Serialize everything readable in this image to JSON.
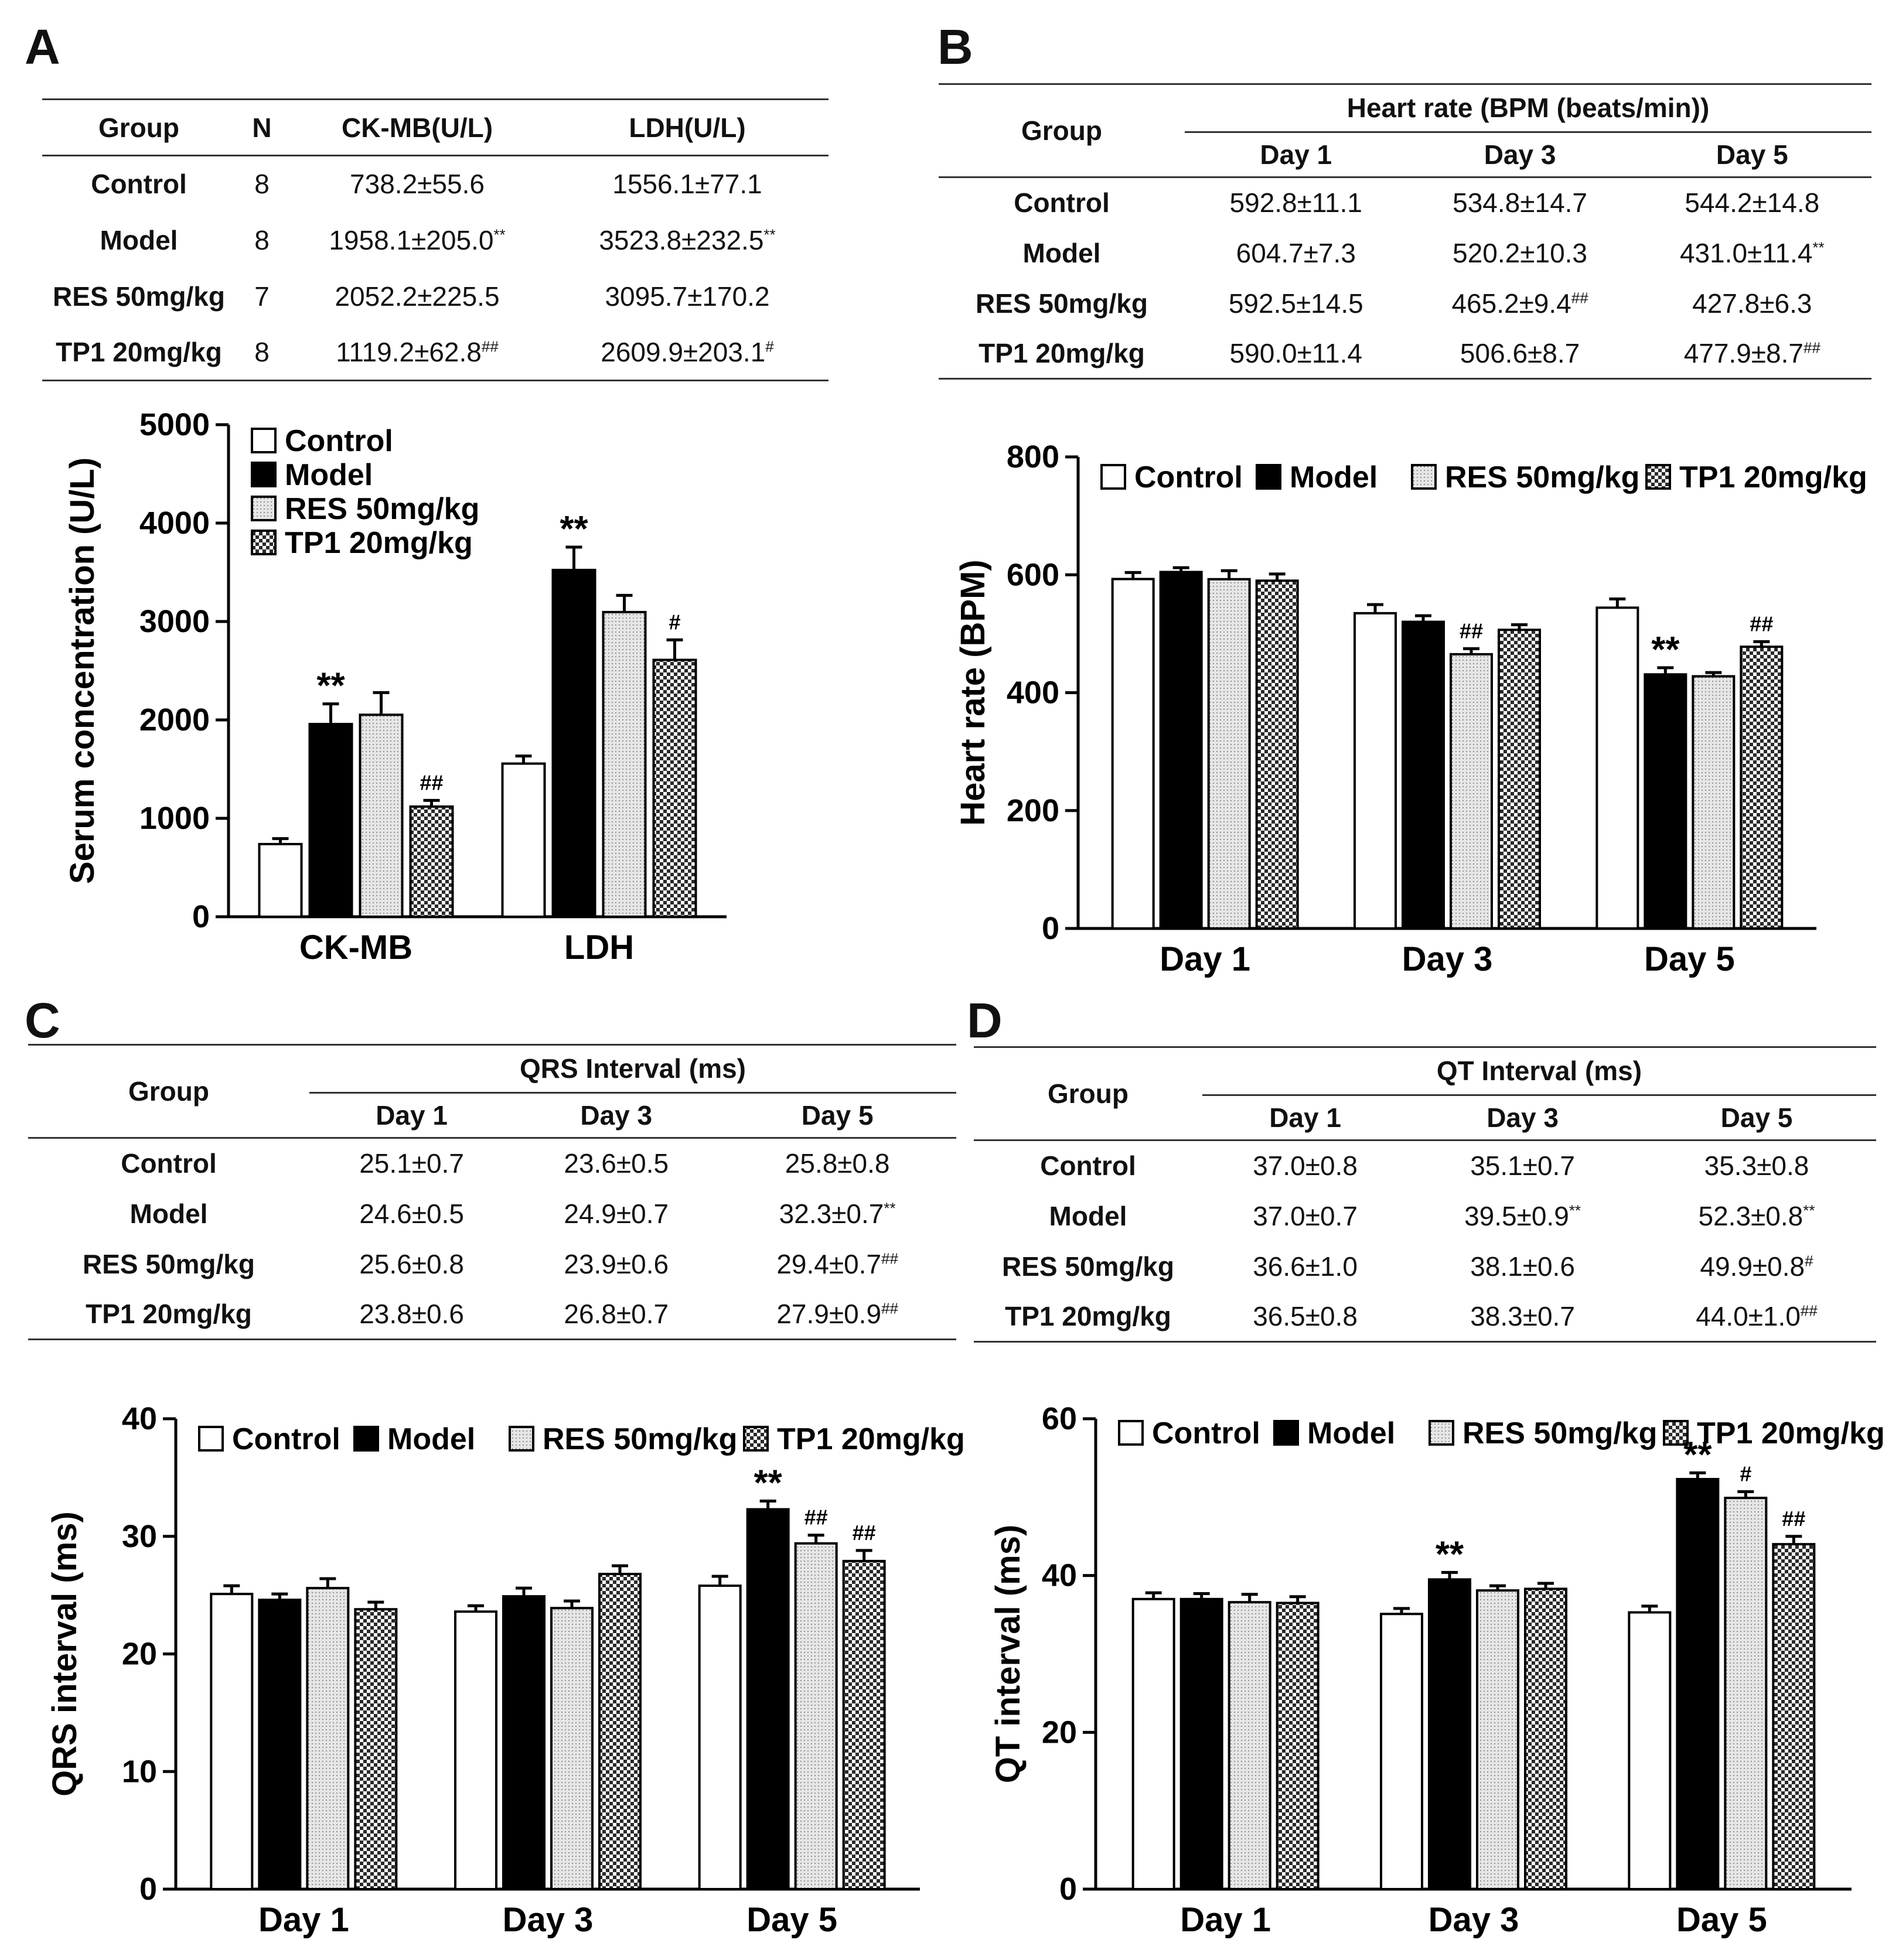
{
  "colors": {
    "control_fill": "#ffffff",
    "model_fill": "#000000",
    "res_fill": "#e6e6e6",
    "tp1_fill": "#2a2a2a",
    "axis": "#000000"
  },
  "panels": {
    "A": {
      "label": "A",
      "table": {
        "headers": [
          "Group",
          "N",
          "CK-MB(U/L)",
          "LDH(U/L)"
        ],
        "rows": [
          {
            "group": "Control",
            "n": "8",
            "ck": "738.2±55.6",
            "ck_sig": "",
            "ldh": "1556.1±77.1",
            "ldh_sig": ""
          },
          {
            "group": "Model",
            "n": "8",
            "ck": "1958.1±205.0",
            "ck_sig": "**",
            "ldh": "3523.8±232.5",
            "ldh_sig": "**"
          },
          {
            "group": "RES 50mg/kg",
            "n": "7",
            "ck": "2052.2±225.5",
            "ck_sig": "",
            "ldh": "3095.7±170.2",
            "ldh_sig": ""
          },
          {
            "group": "TP1 20mg/kg",
            "n": "8",
            "ck": "1119.2±62.8",
            "ck_sig": "##",
            "ldh": "2609.9±203.1",
            "ldh_sig": "#"
          }
        ]
      }
    },
    "B": {
      "label": "B",
      "table": {
        "group_header": "Group",
        "span_header": "Heart rate (BPM (beats/min))",
        "days": [
          "Day 1",
          "Day 3",
          "Day 5"
        ],
        "rows": [
          {
            "group": "Control",
            "v": [
              "592.8±11.1",
              "534.8±14.7",
              "544.2±14.8"
            ],
            "sig": [
              "",
              "",
              ""
            ]
          },
          {
            "group": "Model",
            "v": [
              "604.7±7.3",
              "520.2±10.3",
              "431.0±11.4"
            ],
            "sig": [
              "",
              "",
              "**"
            ]
          },
          {
            "group": "RES 50mg/kg",
            "v": [
              "592.5±14.5",
              "465.2±9.4",
              "427.8±6.3"
            ],
            "sig": [
              "",
              "##",
              ""
            ]
          },
          {
            "group": "TP1 20mg/kg",
            "v": [
              "590.0±11.4",
              "506.6±8.7",
              "477.9±8.7"
            ],
            "sig": [
              "",
              "",
              "##"
            ]
          }
        ]
      }
    },
    "C": {
      "label": "C",
      "table": {
        "group_header": "Group",
        "span_header": "QRS Interval (ms)",
        "days": [
          "Day 1",
          "Day 3",
          "Day 5"
        ],
        "rows": [
          {
            "group": "Control",
            "v": [
              "25.1±0.7",
              "23.6±0.5",
              "25.8±0.8"
            ],
            "sig": [
              "",
              "",
              ""
            ]
          },
          {
            "group": "Model",
            "v": [
              "24.6±0.5",
              "24.9±0.7",
              "32.3±0.7"
            ],
            "sig": [
              "",
              "",
              "**"
            ]
          },
          {
            "group": "RES 50mg/kg",
            "v": [
              "25.6±0.8",
              "23.9±0.6",
              "29.4±0.7"
            ],
            "sig": [
              "",
              "",
              "##"
            ]
          },
          {
            "group": "TP1 20mg/kg",
            "v": [
              "23.8±0.6",
              "26.8±0.7",
              "27.9±0.9"
            ],
            "sig": [
              "",
              "",
              "##"
            ]
          }
        ]
      }
    },
    "D": {
      "label": "D",
      "table": {
        "group_header": "Group",
        "span_header": "QT Interval (ms)",
        "days": [
          "Day 1",
          "Day 3",
          "Day 5"
        ],
        "rows": [
          {
            "group": "Control",
            "v": [
              "37.0±0.8",
              "35.1±0.7",
              "35.3±0.8"
            ],
            "sig": [
              "",
              "",
              ""
            ]
          },
          {
            "group": "Model",
            "v": [
              "37.0±0.7",
              "39.5±0.9",
              "52.3±0.8"
            ],
            "sig": [
              "",
              "**",
              "**"
            ]
          },
          {
            "group": "RES 50mg/kg",
            "v": [
              "36.6±1.0",
              "38.1±0.6",
              "49.9±0.8"
            ],
            "sig": [
              "",
              "",
              "#"
            ]
          },
          {
            "group": "TP1 20mg/kg",
            "v": [
              "36.5±0.8",
              "38.3±0.7",
              "44.0±1.0"
            ],
            "sig": [
              "",
              "",
              "##"
            ]
          }
        ]
      }
    }
  },
  "chart_data": [
    {
      "id": "A",
      "type": "bar",
      "title": "",
      "xlabel": "",
      "ylabel": "Serum concentration (U/L)",
      "ylim": [
        0,
        5000
      ],
      "yticks": [
        0,
        1000,
        2000,
        3000,
        4000,
        5000
      ],
      "categories": [
        "CK-MB",
        "LDH"
      ],
      "legend_position": "top-left",
      "series": [
        {
          "name": "Control",
          "values": [
            738.2,
            1556.1
          ],
          "errors": [
            55.6,
            77.1
          ],
          "sig": [
            "",
            ""
          ]
        },
        {
          "name": "Model",
          "values": [
            1958.1,
            3523.8
          ],
          "errors": [
            205.0,
            232.5
          ],
          "sig": [
            "**",
            "**"
          ]
        },
        {
          "name": "RES 50mg/kg",
          "values": [
            2052.2,
            3095.7
          ],
          "errors": [
            225.5,
            170.2
          ],
          "sig": [
            "",
            ""
          ]
        },
        {
          "name": "TP1 20mg/kg",
          "values": [
            1119.2,
            2609.9
          ],
          "errors": [
            62.8,
            203.1
          ],
          "sig": [
            "##",
            "#"
          ]
        }
      ]
    },
    {
      "id": "B",
      "type": "bar",
      "title": "",
      "xlabel": "",
      "ylabel": "Heart rate (BPM)",
      "ylim": [
        0,
        800
      ],
      "yticks": [
        0,
        200,
        400,
        600,
        800
      ],
      "categories": [
        "Day 1",
        "Day 3",
        "Day 5"
      ],
      "legend_position": "top",
      "series": [
        {
          "name": "Control",
          "values": [
            592.8,
            534.8,
            544.2
          ],
          "errors": [
            11.1,
            14.7,
            14.8
          ],
          "sig": [
            "",
            "",
            ""
          ]
        },
        {
          "name": "Model",
          "values": [
            604.7,
            520.2,
            431.0
          ],
          "errors": [
            7.3,
            10.3,
            11.4
          ],
          "sig": [
            "",
            "",
            "**"
          ]
        },
        {
          "name": "RES 50mg/kg",
          "values": [
            592.5,
            465.2,
            427.8
          ],
          "errors": [
            14.5,
            9.4,
            6.3
          ],
          "sig": [
            "",
            "##",
            ""
          ]
        },
        {
          "name": "TP1 20mg/kg",
          "values": [
            590.0,
            506.6,
            477.9
          ],
          "errors": [
            11.4,
            8.7,
            8.7
          ],
          "sig": [
            "",
            "",
            "##"
          ]
        }
      ]
    },
    {
      "id": "C",
      "type": "bar",
      "title": "",
      "xlabel": "",
      "ylabel": "QRS interval (ms)",
      "ylim": [
        0,
        40
      ],
      "yticks": [
        0,
        10,
        20,
        30,
        40
      ],
      "categories": [
        "Day 1",
        "Day 3",
        "Day 5"
      ],
      "legend_position": "top",
      "series": [
        {
          "name": "Control",
          "values": [
            25.1,
            23.6,
            25.8
          ],
          "errors": [
            0.7,
            0.5,
            0.8
          ],
          "sig": [
            "",
            "",
            ""
          ]
        },
        {
          "name": "Model",
          "values": [
            24.6,
            24.9,
            32.3
          ],
          "errors": [
            0.5,
            0.7,
            0.7
          ],
          "sig": [
            "",
            "",
            "**"
          ]
        },
        {
          "name": "RES 50mg/kg",
          "values": [
            25.6,
            23.9,
            29.4
          ],
          "errors": [
            0.8,
            0.6,
            0.7
          ],
          "sig": [
            "",
            "",
            "##"
          ]
        },
        {
          "name": "TP1 20mg/kg",
          "values": [
            23.8,
            26.8,
            27.9
          ],
          "errors": [
            0.6,
            0.7,
            0.9
          ],
          "sig": [
            "",
            "",
            "##"
          ]
        }
      ]
    },
    {
      "id": "D",
      "type": "bar",
      "title": "",
      "xlabel": "",
      "ylabel": "QT interval (ms)",
      "ylim": [
        0,
        60
      ],
      "yticks": [
        0,
        20,
        40,
        60
      ],
      "categories": [
        "Day 1",
        "Day 3",
        "Day 5"
      ],
      "legend_position": "top",
      "series": [
        {
          "name": "Control",
          "values": [
            37.0,
            35.1,
            35.3
          ],
          "errors": [
            0.8,
            0.7,
            0.8
          ],
          "sig": [
            "",
            "",
            ""
          ]
        },
        {
          "name": "Model",
          "values": [
            37.0,
            39.5,
            52.3
          ],
          "errors": [
            0.7,
            0.9,
            0.8
          ],
          "sig": [
            "",
            "**",
            "**"
          ]
        },
        {
          "name": "RES 50mg/kg",
          "values": [
            36.6,
            38.1,
            49.9
          ],
          "errors": [
            1.0,
            0.6,
            0.8
          ],
          "sig": [
            "",
            "",
            "#"
          ]
        },
        {
          "name": "TP1 20mg/kg",
          "values": [
            36.5,
            38.3,
            44.0
          ],
          "errors": [
            0.8,
            0.7,
            1.0
          ],
          "sig": [
            "",
            "",
            "##"
          ]
        }
      ]
    }
  ]
}
